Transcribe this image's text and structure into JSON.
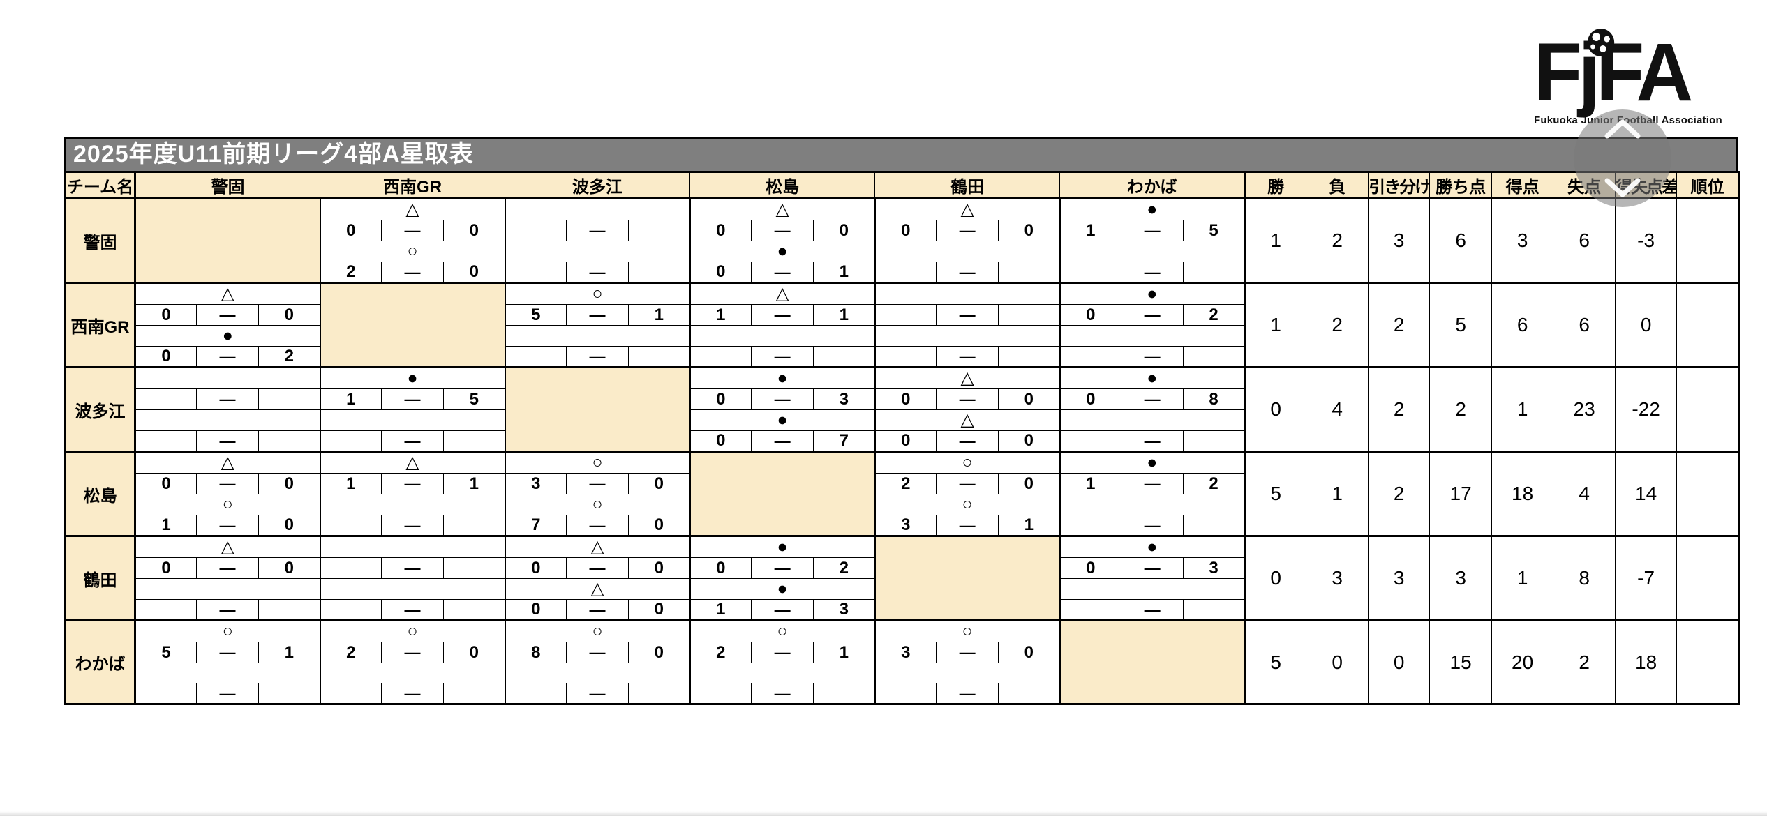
{
  "page": {
    "title": "2025年度U11前期リーグ4部A星取表"
  },
  "logo": {
    "letters": [
      "F",
      "j",
      "F",
      "A"
    ],
    "subtitle": "Fukuoka Junior Football Association"
  },
  "icons": {
    "soccer_ball": "soccer-ball",
    "scroll_up": "chevron-up",
    "scroll_down": "chevron-down"
  },
  "table": {
    "team_col_header": "チーム名",
    "opponents": [
      "警固",
      "西南GR",
      "波多江",
      "松島",
      "鶴田",
      "わかば"
    ],
    "stat_headers": [
      "勝",
      "負",
      "引き分け",
      "勝ち点",
      "得点",
      "失点",
      "得失点差",
      "順位"
    ],
    "dash": "—",
    "rows": [
      {
        "team": "警固",
        "cells": [
          {
            "self": true
          },
          {
            "s1": "△",
            "a1": "0",
            "b1": "0",
            "s2": "○",
            "a2": "2",
            "b2": "0"
          },
          {
            "s1": "",
            "a1": "",
            "b1": "",
            "s2": "",
            "a2": "",
            "b2": ""
          },
          {
            "s1": "△",
            "a1": "0",
            "b1": "0",
            "s2": "●",
            "a2": "0",
            "b2": "1"
          },
          {
            "s1": "△",
            "a1": "0",
            "b1": "0",
            "s2": "",
            "a2": "",
            "b2": ""
          },
          {
            "s1": "●",
            "a1": "1",
            "b1": "5",
            "s2": "",
            "a2": "",
            "b2": ""
          }
        ],
        "stats": {
          "win": "1",
          "loss": "2",
          "draw": "3",
          "points": "6",
          "gf": "3",
          "ga": "6",
          "gd": "-3",
          "rank": ""
        }
      },
      {
        "team": "西南GR",
        "cells": [
          {
            "s1": "△",
            "a1": "0",
            "b1": "0",
            "s2": "●",
            "a2": "0",
            "b2": "2"
          },
          {
            "self": true
          },
          {
            "s1": "○",
            "a1": "5",
            "b1": "1",
            "s2": "",
            "a2": "",
            "b2": ""
          },
          {
            "s1": "△",
            "a1": "1",
            "b1": "1",
            "s2": "",
            "a2": "",
            "b2": ""
          },
          {
            "s1": "",
            "a1": "",
            "b1": "",
            "s2": "",
            "a2": "",
            "b2": ""
          },
          {
            "s1": "●",
            "a1": "0",
            "b1": "2",
            "s2": "",
            "a2": "",
            "b2": ""
          }
        ],
        "stats": {
          "win": "1",
          "loss": "2",
          "draw": "2",
          "points": "5",
          "gf": "6",
          "ga": "6",
          "gd": "0",
          "rank": ""
        }
      },
      {
        "team": "波多江",
        "cells": [
          {
            "s1": "",
            "a1": "",
            "b1": "",
            "s2": "",
            "a2": "",
            "b2": ""
          },
          {
            "s1": "●",
            "a1": "1",
            "b1": "5",
            "s2": "",
            "a2": "",
            "b2": ""
          },
          {
            "self": true
          },
          {
            "s1": "●",
            "a1": "0",
            "b1": "3",
            "s2": "●",
            "a2": "0",
            "b2": "7"
          },
          {
            "s1": "△",
            "a1": "0",
            "b1": "0",
            "s2": "△",
            "a2": "0",
            "b2": "0"
          },
          {
            "s1": "●",
            "a1": "0",
            "b1": "8",
            "s2": "",
            "a2": "",
            "b2": ""
          }
        ],
        "stats": {
          "win": "0",
          "loss": "4",
          "draw": "2",
          "points": "2",
          "gf": "1",
          "ga": "23",
          "gd": "-22",
          "rank": ""
        }
      },
      {
        "team": "松島",
        "cells": [
          {
            "s1": "△",
            "a1": "0",
            "b1": "0",
            "s2": "○",
            "a2": "1",
            "b2": "0"
          },
          {
            "s1": "△",
            "a1": "1",
            "b1": "1",
            "s2": "",
            "a2": "",
            "b2": ""
          },
          {
            "s1": "○",
            "a1": "3",
            "b1": "0",
            "s2": "○",
            "a2": "7",
            "b2": "0"
          },
          {
            "self": true
          },
          {
            "s1": "○",
            "a1": "2",
            "b1": "0",
            "s2": "○",
            "a2": "3",
            "b2": "1"
          },
          {
            "s1": "●",
            "a1": "1",
            "b1": "2",
            "s2": "",
            "a2": "",
            "b2": ""
          }
        ],
        "stats": {
          "win": "5",
          "loss": "1",
          "draw": "2",
          "points": "17",
          "gf": "18",
          "ga": "4",
          "gd": "14",
          "rank": ""
        }
      },
      {
        "team": "鶴田",
        "cells": [
          {
            "s1": "△",
            "a1": "0",
            "b1": "0",
            "s2": "",
            "a2": "",
            "b2": ""
          },
          {
            "s1": "",
            "a1": "",
            "b1": "",
            "s2": "",
            "a2": "",
            "b2": ""
          },
          {
            "s1": "△",
            "a1": "0",
            "b1": "0",
            "s2": "△",
            "a2": "0",
            "b2": "0"
          },
          {
            "s1": "●",
            "a1": "0",
            "b1": "2",
            "s2": "●",
            "a2": "1",
            "b2": "3"
          },
          {
            "self": true
          },
          {
            "s1": "●",
            "a1": "0",
            "b1": "3",
            "s2": "",
            "a2": "",
            "b2": ""
          }
        ],
        "stats": {
          "win": "0",
          "loss": "3",
          "draw": "3",
          "points": "3",
          "gf": "1",
          "ga": "8",
          "gd": "-7",
          "rank": ""
        }
      },
      {
        "team": "わかば",
        "cells": [
          {
            "s1": "○",
            "a1": "5",
            "b1": "1",
            "s2": "",
            "a2": "",
            "b2": ""
          },
          {
            "s1": "○",
            "a1": "2",
            "b1": "0",
            "s2": "",
            "a2": "",
            "b2": ""
          },
          {
            "s1": "○",
            "a1": "8",
            "b1": "0",
            "s2": "",
            "a2": "",
            "b2": ""
          },
          {
            "s1": "○",
            "a1": "2",
            "b1": "1",
            "s2": "",
            "a2": "",
            "b2": ""
          },
          {
            "s1": "○",
            "a1": "3",
            "b1": "0",
            "s2": "",
            "a2": "",
            "b2": ""
          },
          {
            "self": true
          }
        ],
        "stats": {
          "win": "5",
          "loss": "0",
          "draw": "0",
          "points": "15",
          "gf": "20",
          "ga": "2",
          "gd": "18",
          "rank": ""
        }
      }
    ]
  }
}
